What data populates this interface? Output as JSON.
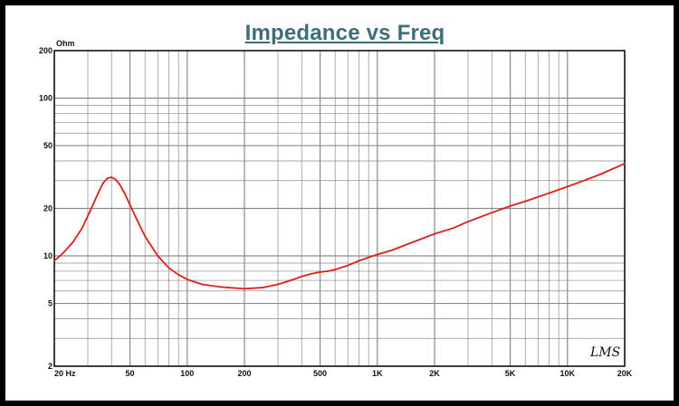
{
  "chart_data": {
    "type": "line",
    "title": "Impedance vs Freq",
    "ylabel": "Ohm",
    "xlabel": "",
    "x_scale": "log",
    "y_scale": "log",
    "xlim": [
      20,
      20000
    ],
    "ylim": [
      2,
      200
    ],
    "grid": true,
    "x_tick_labels": [
      {
        "value": 20,
        "label": "20  Hz"
      },
      {
        "value": 50,
        "label": "50"
      },
      {
        "value": 100,
        "label": "100"
      },
      {
        "value": 200,
        "label": "200"
      },
      {
        "value": 500,
        "label": "500"
      },
      {
        "value": 1000,
        "label": "1K"
      },
      {
        "value": 2000,
        "label": "2K"
      },
      {
        "value": 5000,
        "label": "5K"
      },
      {
        "value": 10000,
        "label": "10K"
      },
      {
        "value": 20000,
        "label": "20K"
      }
    ],
    "y_tick_labels": [
      {
        "value": 200,
        "label": "200"
      },
      {
        "value": 100,
        "label": "100"
      },
      {
        "value": 50,
        "label": "50"
      },
      {
        "value": 20,
        "label": "20"
      },
      {
        "value": 10,
        "label": "10"
      },
      {
        "value": 5,
        "label": "5"
      },
      {
        "value": 2,
        "label": "2"
      }
    ],
    "series": [
      {
        "color": "#dd1f1f",
        "points": [
          [
            20,
            9.3
          ],
          [
            22,
            10.3
          ],
          [
            25,
            12.2
          ],
          [
            28,
            15.0
          ],
          [
            31,
            19.5
          ],
          [
            34,
            25.0
          ],
          [
            36,
            28.8
          ],
          [
            38,
            31.0
          ],
          [
            40,
            31.5
          ],
          [
            42,
            30.5
          ],
          [
            44,
            28.6
          ],
          [
            47,
            24.8
          ],
          [
            50,
            21.0
          ],
          [
            55,
            16.5
          ],
          [
            60,
            13.3
          ],
          [
            70,
            10.0
          ],
          [
            80,
            8.4
          ],
          [
            90,
            7.6
          ],
          [
            100,
            7.1
          ],
          [
            120,
            6.6
          ],
          [
            150,
            6.35
          ],
          [
            180,
            6.25
          ],
          [
            200,
            6.2
          ],
          [
            250,
            6.3
          ],
          [
            300,
            6.6
          ],
          [
            350,
            7.0
          ],
          [
            400,
            7.4
          ],
          [
            450,
            7.7
          ],
          [
            500,
            7.9
          ],
          [
            550,
            8.0
          ],
          [
            600,
            8.2
          ],
          [
            700,
            8.7
          ],
          [
            800,
            9.3
          ],
          [
            900,
            9.8
          ],
          [
            1000,
            10.2
          ],
          [
            1200,
            10.9
          ],
          [
            1500,
            12.1
          ],
          [
            2000,
            13.8
          ],
          [
            2500,
            15.0
          ],
          [
            3000,
            16.5
          ],
          [
            4000,
            18.8
          ],
          [
            5000,
            20.7
          ],
          [
            6000,
            22.2
          ],
          [
            8000,
            25.0
          ],
          [
            10000,
            27.5
          ],
          [
            12000,
            29.8
          ],
          [
            15000,
            33.0
          ],
          [
            20000,
            38.5
          ]
        ]
      }
    ]
  },
  "logo_text": "LMS"
}
